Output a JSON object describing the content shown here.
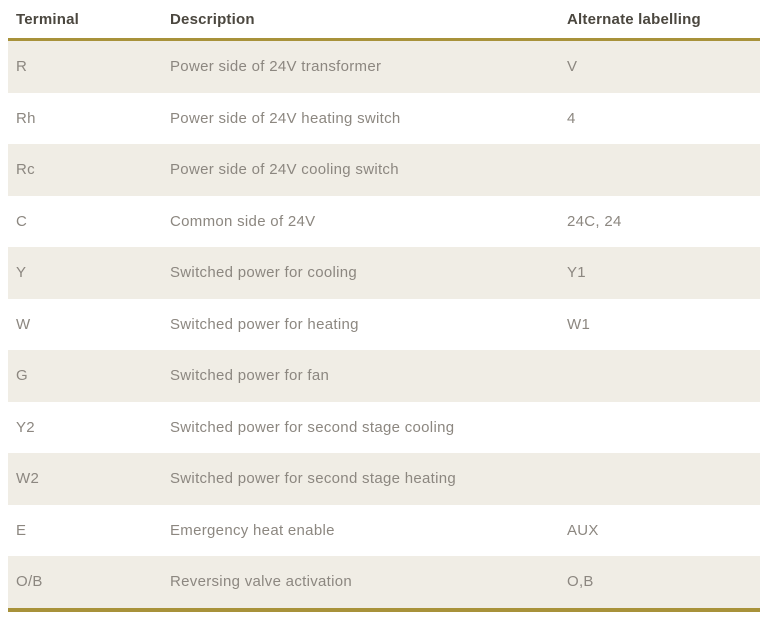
{
  "table": {
    "name": "thermostat-terminal-reference",
    "columns": [
      {
        "label": "Terminal"
      },
      {
        "label": "Description"
      },
      {
        "label": "Alternate labelling"
      }
    ],
    "rows": [
      {
        "terminal": "R",
        "description": "Power side of 24V transformer",
        "alternate": "V"
      },
      {
        "terminal": "Rh",
        "description": "Power side of 24V heating switch",
        "alternate": "4"
      },
      {
        "terminal": "Rc",
        "description": "Power side of 24V cooling switch",
        "alternate": ""
      },
      {
        "terminal": "C",
        "description": "Common side of 24V",
        "alternate": "24C, 24"
      },
      {
        "terminal": "Y",
        "description": "Switched power for cooling",
        "alternate": "Y1"
      },
      {
        "terminal": "W",
        "description": "Switched power for heating",
        "alternate": "W1"
      },
      {
        "terminal": "G",
        "description": "Switched power for fan",
        "alternate": ""
      },
      {
        "terminal": "Y2",
        "description": "Switched power for second stage cooling",
        "alternate": ""
      },
      {
        "terminal": "W2",
        "description": "Switched power for second stage heating",
        "alternate": ""
      },
      {
        "terminal": "E",
        "description": "Emergency heat enable",
        "alternate": "AUX"
      },
      {
        "terminal": "O/B",
        "description": "Reversing valve activation",
        "alternate": "O,B"
      }
    ],
    "colors": {
      "accent_gold": "#a8923a",
      "row_alt_bg": "#f0ede5",
      "row_bg": "#ffffff",
      "body_text": "#8c8780",
      "header_text": "#4b473f"
    }
  }
}
